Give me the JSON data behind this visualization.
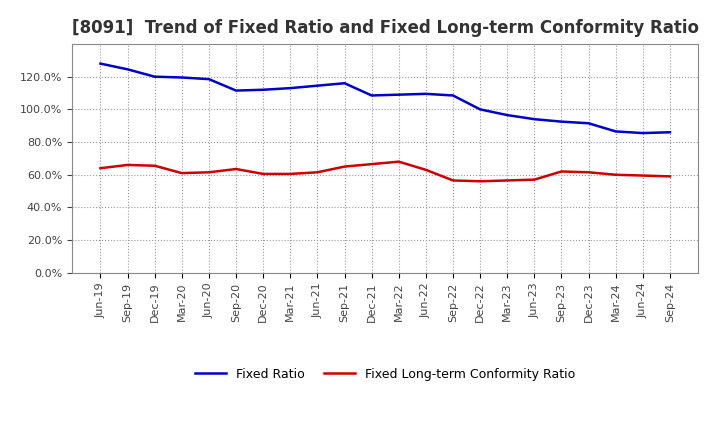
{
  "title": "[8091]  Trend of Fixed Ratio and Fixed Long-term Conformity Ratio",
  "x_labels": [
    "Jun-19",
    "Sep-19",
    "Dec-19",
    "Mar-20",
    "Jun-20",
    "Sep-20",
    "Dec-20",
    "Mar-21",
    "Jun-21",
    "Sep-21",
    "Dec-21",
    "Mar-22",
    "Jun-22",
    "Sep-22",
    "Dec-22",
    "Mar-23",
    "Jun-23",
    "Sep-23",
    "Dec-23",
    "Mar-24",
    "Jun-24",
    "Sep-24"
  ],
  "fixed_ratio": [
    128.0,
    124.5,
    120.0,
    119.5,
    118.5,
    111.5,
    112.0,
    113.0,
    114.5,
    116.0,
    108.5,
    109.0,
    109.5,
    108.5,
    100.0,
    96.5,
    94.0,
    92.5,
    91.5,
    86.5,
    85.5,
    86.0
  ],
  "fixed_longterm": [
    64.0,
    66.0,
    65.5,
    61.0,
    61.5,
    63.5,
    60.5,
    60.5,
    61.5,
    65.0,
    66.5,
    68.0,
    63.0,
    56.5,
    56.0,
    56.5,
    57.0,
    62.0,
    61.5,
    60.0,
    59.5,
    59.0
  ],
  "fixed_ratio_color": "#0000CC",
  "fixed_longterm_color": "#CC0000",
  "ylim": [
    0,
    140
  ],
  "yticks": [
    0,
    20,
    40,
    60,
    80,
    100,
    120
  ],
  "background_color": "#FFFFFF",
  "plot_bg_color": "#FFFFFF",
  "grid_color": "#999999",
  "legend_fixed": "Fixed Ratio",
  "legend_longterm": "Fixed Long-term Conformity Ratio",
  "title_fontsize": 12,
  "line_width": 1.8
}
